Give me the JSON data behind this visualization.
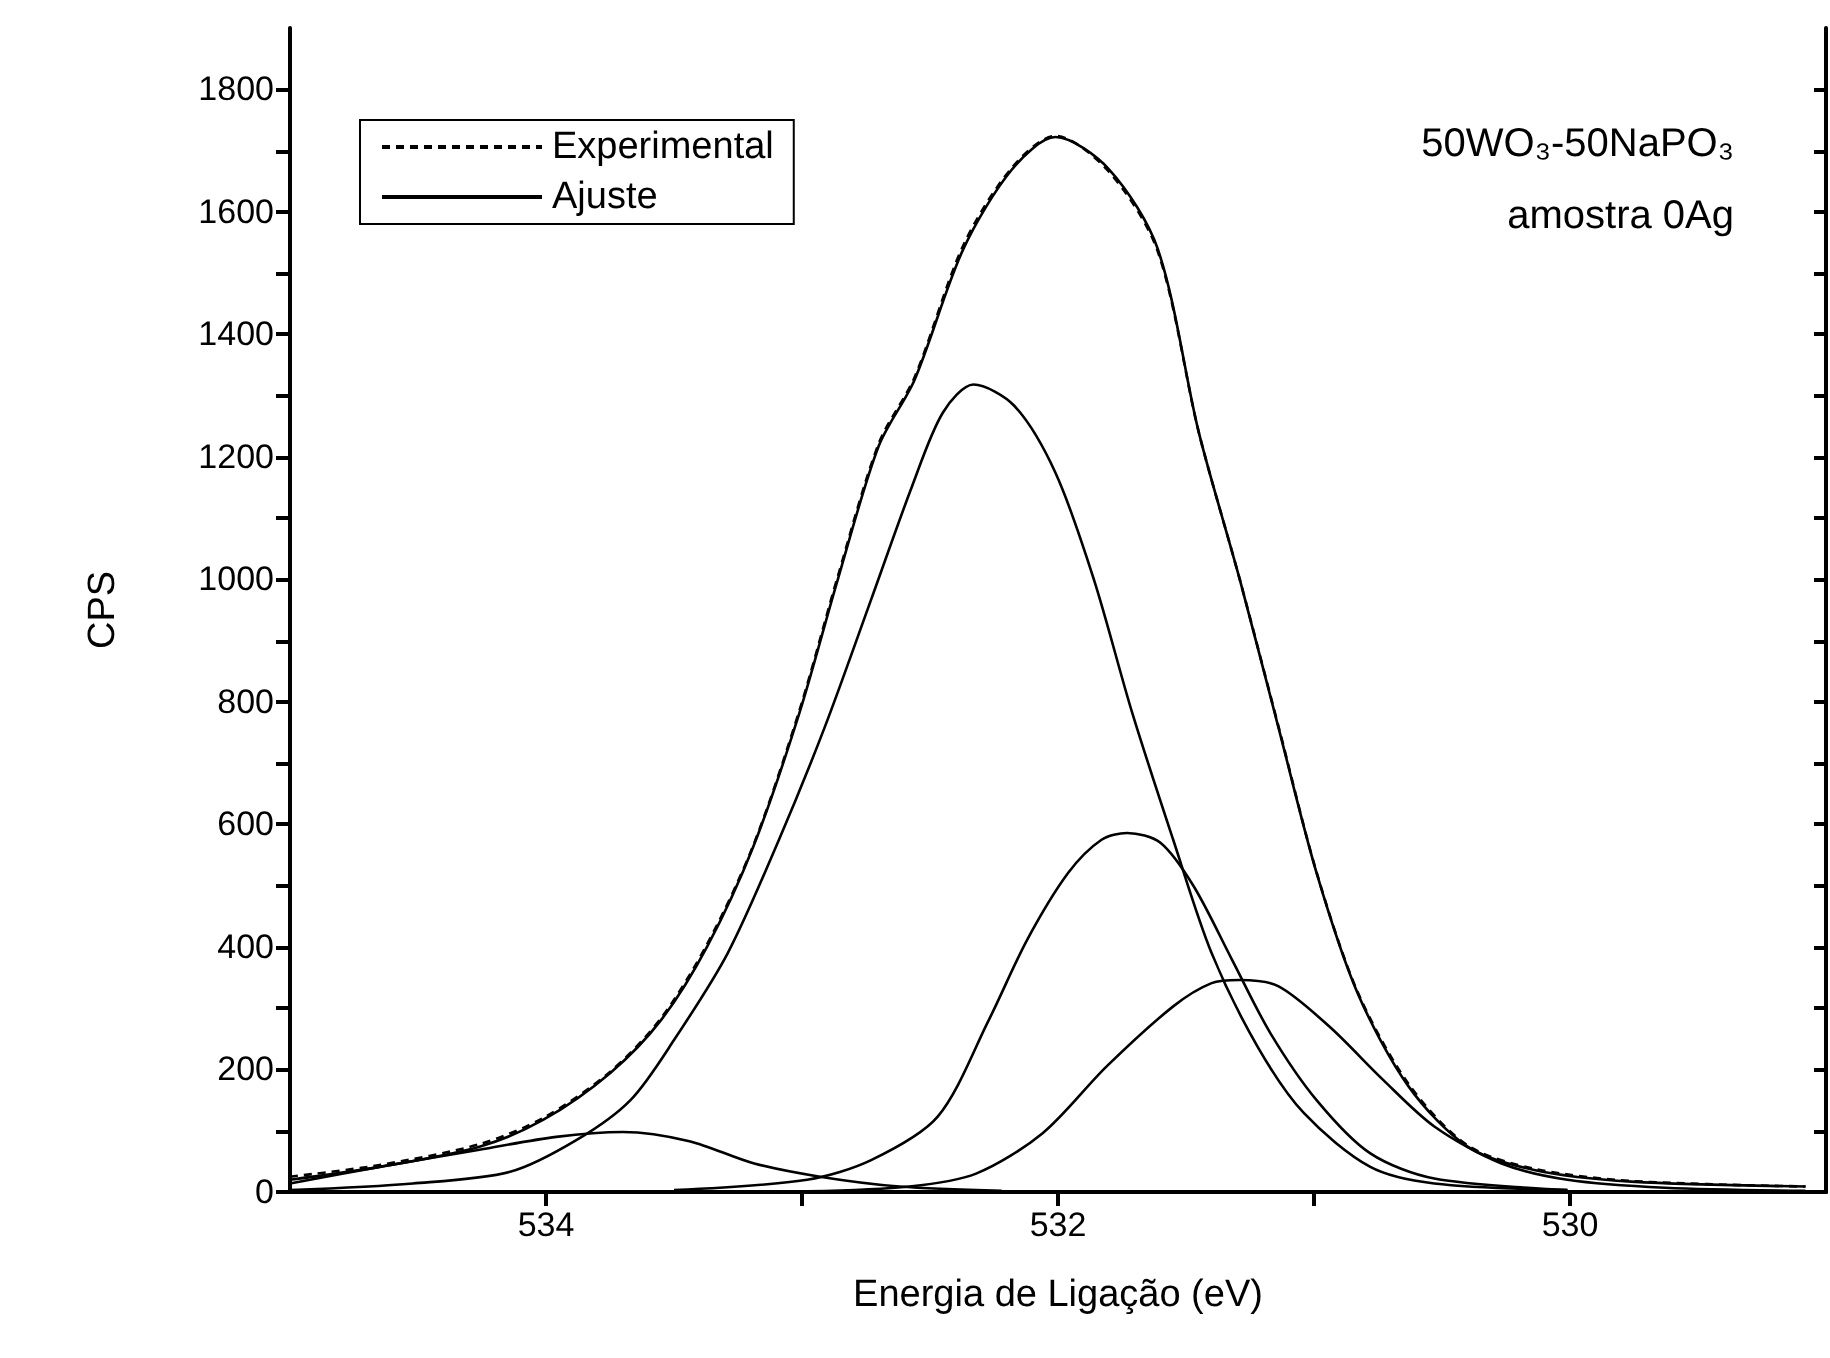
{
  "chart_data": {
    "type": "line",
    "xlabel": "Energia de Ligação (eV)",
    "ylabel": "CPS",
    "annotations": [
      "50WO₃-50NaPO₃",
      "amostra 0Ag"
    ],
    "xlim": [
      535,
      529
    ],
    "ylim": [
      0,
      1900
    ],
    "xticks": [
      534,
      {
        "value": 533,
        "label": null
      },
      532,
      {
        "value": 531,
        "label": null
      },
      530
    ],
    "yticks": [
      0,
      {
        "value": 100,
        "label": null
      },
      200,
      {
        "value": 300,
        "label": null
      },
      400,
      {
        "value": 500,
        "label": null
      },
      600,
      {
        "value": 700,
        "label": null
      },
      800,
      {
        "value": 900,
        "label": null
      },
      1000,
      {
        "value": 1100,
        "label": null
      },
      1200,
      {
        "value": 1300,
        "label": null
      },
      1400,
      {
        "value": 1500,
        "label": null
      },
      1600,
      {
        "value": 1700,
        "label": null
      },
      1800
    ],
    "grid": false,
    "legend": "top left",
    "marker": "none",
    "series": [
      {
        "name": "Experimental",
        "color": "#000000",
        "line_style": "dashed",
        "x": [
          535,
          534.65,
          534.26,
          534.01,
          533.75,
          533.55,
          533.37,
          533.19,
          533.01,
          532.86,
          532.7,
          532.56,
          532.37,
          532.18,
          532.01,
          531.8,
          531.61,
          531.45,
          531.29,
          531.14,
          530.99,
          530.83,
          530.63,
          530.4,
          530.14,
          529.76,
          529.08
        ],
        "values": [
          25,
          44,
          78,
          121,
          196,
          284,
          405,
          566,
          786,
          1005,
          1222,
          1330,
          1545,
          1672,
          1724,
          1665,
          1535,
          1240,
          1000,
          762,
          522,
          327,
          176,
          76,
          38,
          18,
          9
        ]
      },
      {
        "name": "Ajuste",
        "color": "#000000",
        "line_style": "solid",
        "x": [
          535,
          534.65,
          534.26,
          534.01,
          533.75,
          533.55,
          533.37,
          533.19,
          533.01,
          532.86,
          532.7,
          532.56,
          532.37,
          532.18,
          532.01,
          531.8,
          531.61,
          531.45,
          531.29,
          531.14,
          530.99,
          530.83,
          530.63,
          530.4,
          530.14,
          529.76,
          529.08
        ],
        "values": [
          20,
          41,
          74,
          118,
          194,
          281,
          401,
          564,
          782,
          1000,
          1218,
          1326,
          1539,
          1669,
          1722,
          1669,
          1539,
          1240,
          1000,
          760,
          521,
          325,
          172,
          74,
          36,
          17,
          9
        ]
      },
      {
        "color": "#000000",
        "line_style": "solid",
        "x": [
          535,
          534.52,
          534.14,
          533.88,
          533.67,
          533.5,
          533.29,
          533.09,
          532.91,
          532.73,
          532.57,
          532.45,
          532.33,
          532.17,
          532.01,
          531.86,
          531.71,
          531.55,
          531.4,
          531.22,
          531.04,
          530.78,
          530.53,
          530.01
        ],
        "values": [
          3,
          14,
          33,
          85,
          150,
          248,
          390,
          575,
          760,
          967,
          1152,
          1272,
          1318,
          1283,
          1174,
          1000,
          782,
          575,
          390,
          237,
          129,
          41,
          14,
          3
        ]
      },
      {
        "color": "#000000",
        "line_style": "solid",
        "x": [
          533.5,
          532.98,
          532.73,
          532.47,
          532.27,
          532.12,
          531.96,
          531.83,
          531.73,
          531.6,
          531.47,
          531.32,
          531.17,
          530.99,
          530.78,
          530.53,
          530.01
        ],
        "values": [
          3,
          20,
          52,
          123,
          281,
          412,
          521,
          575,
          586,
          570,
          499,
          379,
          259,
          150,
          63,
          22,
          3
        ]
      },
      {
        "color": "#000000",
        "line_style": "solid",
        "x": [
          532.98,
          532.58,
          532.32,
          532.06,
          531.81,
          531.55,
          531.4,
          531.29,
          531.14,
          530.94,
          530.73,
          530.53,
          530.27,
          530.01,
          529.63,
          529.08
        ],
        "values": [
          1,
          9,
          30,
          96,
          205,
          303,
          341,
          346,
          336,
          270,
          183,
          107,
          47,
          20,
          7,
          2
        ]
      },
      {
        "color": "#000000",
        "line_style": "solid",
        "x": [
          535,
          534.65,
          534.26,
          533.96,
          533.7,
          533.44,
          533.19,
          532.93,
          532.62,
          532.22
        ],
        "values": [
          14,
          41,
          69,
          90,
          98,
          83,
          47,
          25,
          9,
          2
        ]
      }
    ]
  }
}
